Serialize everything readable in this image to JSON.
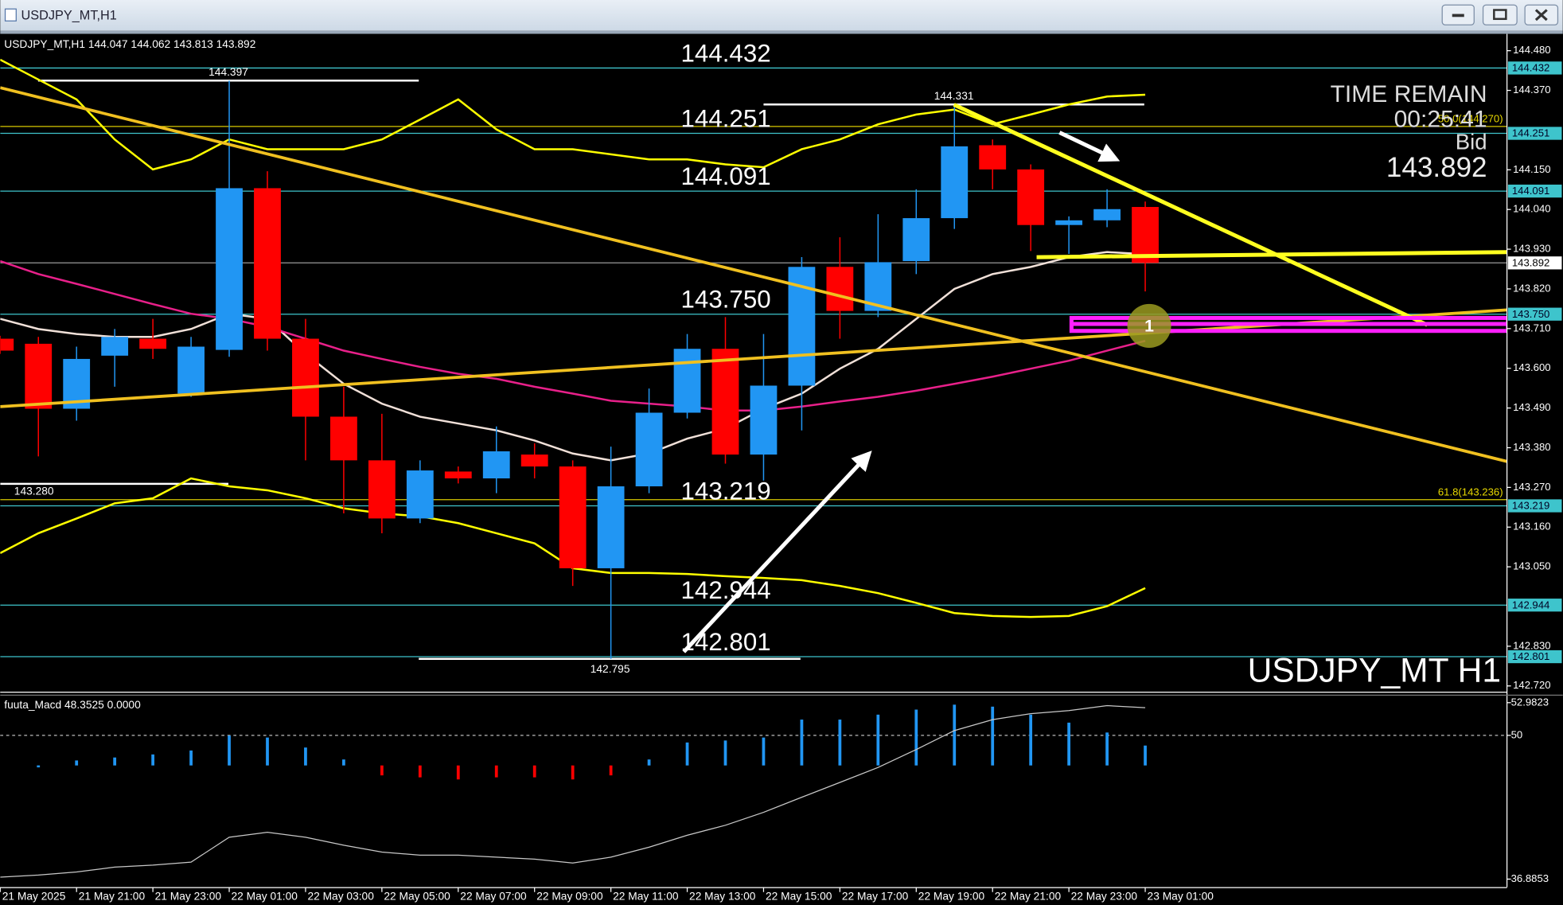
{
  "window": {
    "title": "USDJPY_MT,H1"
  },
  "chart_data": [
    {
      "type": "candlestick",
      "info": "USDJPY_MT,H1  144.047 144.062 143.813 143.892",
      "watermark": "USDJPY_MT H1",
      "categories": [
        "21 May 2025",
        null,
        "21 May 21:00",
        null,
        "21 May 23:00",
        null,
        "22 May 01:00",
        null,
        "22 May 03:00",
        null,
        "22 May 05:00",
        null,
        "22 May 07:00",
        null,
        "22 May 09:00",
        null,
        "22 May 11:00",
        null,
        "22 May 13:00",
        null,
        "22 May 15:00",
        null,
        "22 May 17:00",
        null,
        "22 May 19:00",
        null,
        "22 May 21:00",
        null,
        "22 May 23:00",
        null,
        "23 May 01:00"
      ],
      "open": [
        143.682,
        143.668,
        143.488,
        143.635,
        143.682,
        143.53,
        143.651,
        144.099,
        143.682,
        143.466,
        143.345,
        143.184,
        143.314,
        143.295,
        143.361,
        143.328,
        143.046,
        143.273,
        143.477,
        143.654,
        143.361,
        143.552,
        143.881,
        143.759,
        143.897,
        144.016,
        144.218,
        144.151,
        143.997,
        144.01,
        144.047
      ],
      "high": [
        143.69,
        143.687,
        143.66,
        143.709,
        143.737,
        143.687,
        144.397,
        144.146,
        143.737,
        143.549,
        143.474,
        143.345,
        143.328,
        143.439,
        143.392,
        143.345,
        143.383,
        143.544,
        143.695,
        143.742,
        143.695,
        143.908,
        143.963,
        144.027,
        144.096,
        144.331,
        144.234,
        144.165,
        144.021,
        144.096,
        144.062
      ],
      "low": [
        143.64,
        143.356,
        143.455,
        143.549,
        143.626,
        143.521,
        143.632,
        143.649,
        143.345,
        143.198,
        143.143,
        143.171,
        143.281,
        143.254,
        143.295,
        142.997,
        142.795,
        143.254,
        143.461,
        143.336,
        143.289,
        143.428,
        143.682,
        143.742,
        143.861,
        143.986,
        144.096,
        143.925,
        143.917,
        143.991,
        143.813
      ],
      "close": [
        143.649,
        143.488,
        143.626,
        143.687,
        143.654,
        143.66,
        144.099,
        143.682,
        143.466,
        143.345,
        143.184,
        143.317,
        143.295,
        143.37,
        143.328,
        143.046,
        143.273,
        143.477,
        143.654,
        143.361,
        143.552,
        143.881,
        143.759,
        143.894,
        144.016,
        144.215,
        144.151,
        143.997,
        144.01,
        144.041,
        143.892
      ],
      "up_color": "#2196f3",
      "down_color": "#ff0000",
      "lines": [
        {
          "color": "#ffff00",
          "values": [
            144.455,
            144.4,
            144.345,
            144.234,
            144.151,
            144.179,
            144.234,
            144.207,
            144.207,
            144.207,
            144.234,
            144.289,
            144.345,
            144.262,
            144.207,
            144.207,
            144.193,
            144.179,
            144.179,
            144.165,
            144.157,
            144.207,
            144.234,
            144.276,
            144.303,
            144.317,
            144.276,
            144.303,
            144.331,
            144.353,
            144.358
          ]
        },
        {
          "color": "#ffff00",
          "values": [
            143.088,
            143.143,
            143.184,
            143.226,
            143.24,
            143.295,
            143.273,
            143.262,
            143.24,
            143.212,
            143.198,
            143.19,
            143.171,
            143.143,
            143.115,
            143.046,
            143.033,
            143.033,
            143.03,
            143.024,
            143.019,
            143.013,
            142.997,
            142.977,
            142.95,
            142.922,
            142.914,
            142.911,
            142.914,
            142.941,
            142.991
          ]
        },
        {
          "color": "#f0e0d8",
          "values": [
            143.737,
            143.709,
            143.695,
            143.687,
            143.687,
            143.709,
            143.751,
            143.737,
            143.64,
            143.557,
            143.502,
            143.466,
            143.447,
            143.428,
            143.4,
            143.364,
            143.345,
            143.364,
            143.405,
            143.433,
            143.488,
            143.53,
            143.599,
            143.654,
            143.737,
            143.82,
            143.861,
            143.881,
            143.908,
            143.922,
            143.916
          ]
        },
        {
          "color": "#e8208a",
          "values": [
            143.897,
            143.861,
            143.834,
            143.806,
            143.778,
            143.751,
            143.737,
            143.715,
            143.682,
            143.649,
            143.626,
            143.604,
            143.585,
            143.571,
            143.549,
            143.53,
            143.51,
            143.502,
            143.494,
            143.483,
            143.483,
            143.494,
            143.508,
            143.521,
            143.538,
            143.557,
            143.577,
            143.599,
            143.621,
            143.649,
            143.676
          ]
        }
      ],
      "levels": [
        144.432,
        144.251,
        144.091,
        {
          "value": 143.75,
          "label": "143.750"
        },
        143.219,
        142.944,
        142.801
      ],
      "level_color": "#3ec4cc",
      "bid": 143.892,
      "price_marks": [
        144.397,
        144.331,
        {
          "value": 143.28,
          "label": "143.280"
        },
        142.795
      ],
      "fibo": [
        {
          "label": "61.8(143.236)",
          "value": 143.236
        },
        {
          "label": "50.0(144.270)",
          "value": 144.27
        }
      ],
      "timer": {
        "title": "TIME REMAIN",
        "remaining": "00:25:41",
        "bid_label": "Bid"
      },
      "marker_label": "1",
      "ylim": [
        142.704,
        144.521
      ],
      "yticks": [
        {
          "value": 144.48,
          "label": "144.480"
        },
        {
          "value": 144.37,
          "label": "144.370"
        },
        {
          "value": 144.15,
          "label": "144.150"
        },
        {
          "value": 144.04,
          "label": "144.040"
        },
        {
          "value": 143.93,
          "label": "143.930"
        },
        {
          "value": 143.82,
          "label": "143.820"
        },
        {
          "value": 143.71,
          "label": "143.710"
        },
        {
          "value": 143.6,
          "label": "143.600"
        },
        {
          "value": 143.49,
          "label": "143.490"
        },
        {
          "value": 143.38,
          "label": "143.380"
        },
        {
          "value": 143.27,
          "label": "143.270"
        },
        {
          "value": 143.16,
          "label": "143.160"
        },
        {
          "value": 143.05,
          "label": "143.050"
        },
        {
          "value": 142.83,
          "label": "142.830"
        },
        {
          "value": 142.72,
          "label": "142.720"
        }
      ]
    },
    {
      "type": "macd",
      "title": "fuuta_Macd 48.3525 0.0000",
      "values": [
        null,
        47.26,
        47.71,
        47.98,
        48.26,
        48.62,
        49.98,
        49.8,
        48.89,
        47.8,
        46.35,
        46.17,
        45.98,
        46.17,
        46.17,
        45.98,
        46.35,
        47.8,
        49.35,
        49.53,
        49.8,
        51.44,
        51.44,
        51.89,
        52.35,
        52.8,
        52.62,
        51.89,
        51.16,
        50.26,
        49.07
      ],
      "up_color": "#2196f3",
      "down_color": "#ff0000",
      "series": [
        {
          "color": "#c8c8c8",
          "values": [
            37.07,
            37.25,
            37.53,
            37.98,
            38.16,
            38.43,
            40.71,
            41.16,
            40.71,
            39.98,
            39.35,
            39.07,
            39.07,
            38.89,
            38.71,
            38.35,
            38.89,
            39.8,
            40.89,
            41.8,
            42.98,
            44.35,
            45.71,
            47.07,
            48.71,
            50.44,
            51.44,
            51.98,
            52.26,
            52.71,
            52.53
          ]
        }
      ],
      "level": 50,
      "ylim": [
        36.16,
        53.71
      ],
      "yticks": [
        52.9823,
        50,
        36.8853
      ]
    }
  ]
}
